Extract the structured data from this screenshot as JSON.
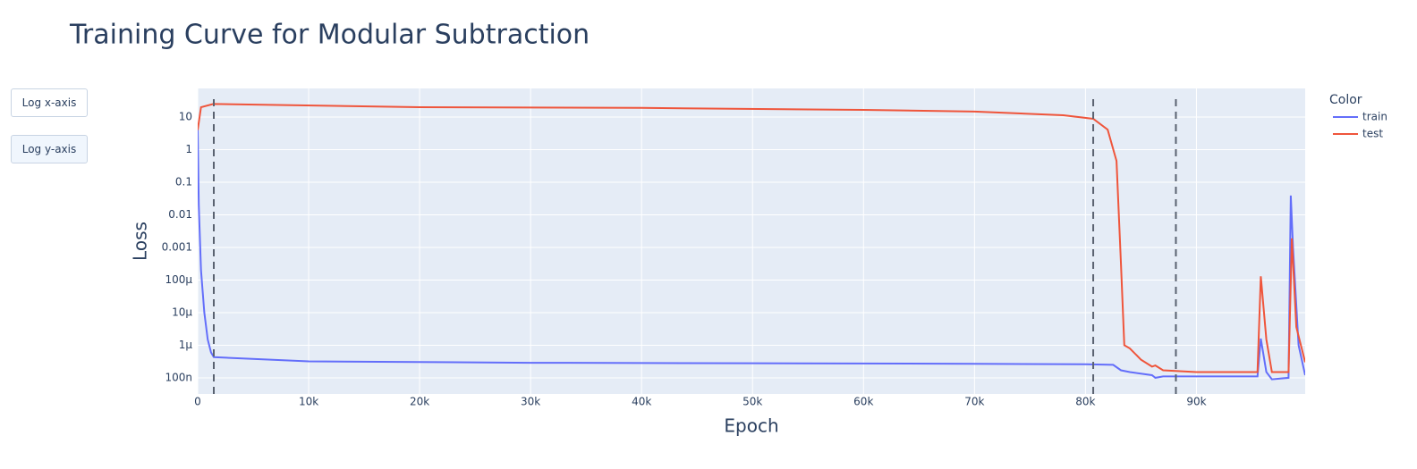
{
  "chart_data": {
    "type": "line",
    "title": "Training Curve for Modular Subtraction",
    "xlabel": "Epoch",
    "ylabel": "Loss",
    "legend_title": "Color",
    "legend": "top-right",
    "buttons": [
      "Log x-axis",
      "Log y-axis"
    ],
    "xlog": false,
    "ylog": true,
    "grid": true,
    "xlim": [
      0,
      99800
    ],
    "ylim": [
      3.2e-08,
      75
    ],
    "xticks": [
      0,
      {
        "value": 10000,
        "label": "10k"
      },
      {
        "value": 20000,
        "label": "20k"
      },
      {
        "value": 30000,
        "label": "30k"
      },
      {
        "value": 40000,
        "label": "40k"
      },
      {
        "value": 50000,
        "label": "50k"
      },
      {
        "value": 60000,
        "label": "60k"
      },
      {
        "value": 70000,
        "label": "70k"
      },
      {
        "value": 80000,
        "label": "80k"
      },
      {
        "value": 90000,
        "label": "90k"
      }
    ],
    "yticks": [
      {
        "value": 1e-07,
        "label": "100n"
      },
      {
        "value": 1e-06,
        "label": "1μ"
      },
      {
        "value": 1e-05,
        "label": "10μ"
      },
      {
        "value": 0.0001,
        "label": "100μ"
      },
      0.001,
      0.01,
      0.1,
      1,
      10
    ],
    "vlines": [
      1450,
      80700,
      88150
    ],
    "series": [
      {
        "name": "train",
        "color": "#636efa",
        "x": [
          0,
          100,
          300,
          600,
          900,
          1200,
          1450,
          10000,
          30000,
          50000,
          70000,
          80000,
          82500,
          83200,
          84000,
          86000,
          86300,
          87000,
          90000,
          95500,
          95800,
          96300,
          96800,
          98300,
          98500,
          98700,
          99200,
          99800
        ],
        "values": [
          4,
          0.02,
          0.0002,
          1e-05,
          1.5e-06,
          6e-07,
          4.3e-07,
          3.2e-07,
          2.9e-07,
          2.8e-07,
          2.7e-07,
          2.6e-07,
          2.5e-07,
          1.7e-07,
          1.5e-07,
          1.2e-07,
          1e-07,
          1.1e-07,
          1.1e-07,
          1.1e-07,
          1.6e-06,
          1.5e-07,
          9e-08,
          1e-07,
          0.039,
          0.001,
          1e-06,
          1.2e-07
        ]
      },
      {
        "name": "test",
        "color": "#ef553b",
        "x": [
          0,
          300,
          1400,
          20000,
          40000,
          60000,
          70000,
          78000,
          80700,
          82000,
          82800,
          83200,
          83500,
          84000,
          85000,
          86000,
          86300,
          87000,
          90000,
          95500,
          95800,
          96300,
          96800,
          98300,
          98600,
          99000,
          99800
        ],
        "values": [
          4,
          20,
          25,
          20,
          19,
          16.5,
          14.6,
          11.3,
          8.8,
          4.1,
          0.45,
          0.0003,
          1e-06,
          8e-07,
          3.6e-07,
          2.2e-07,
          2.4e-07,
          1.7e-07,
          1.5e-07,
          1.5e-07,
          0.00013,
          1.5e-06,
          1.5e-07,
          1.5e-07,
          0.0019,
          3.6e-06,
          3e-07
        ]
      }
    ]
  }
}
